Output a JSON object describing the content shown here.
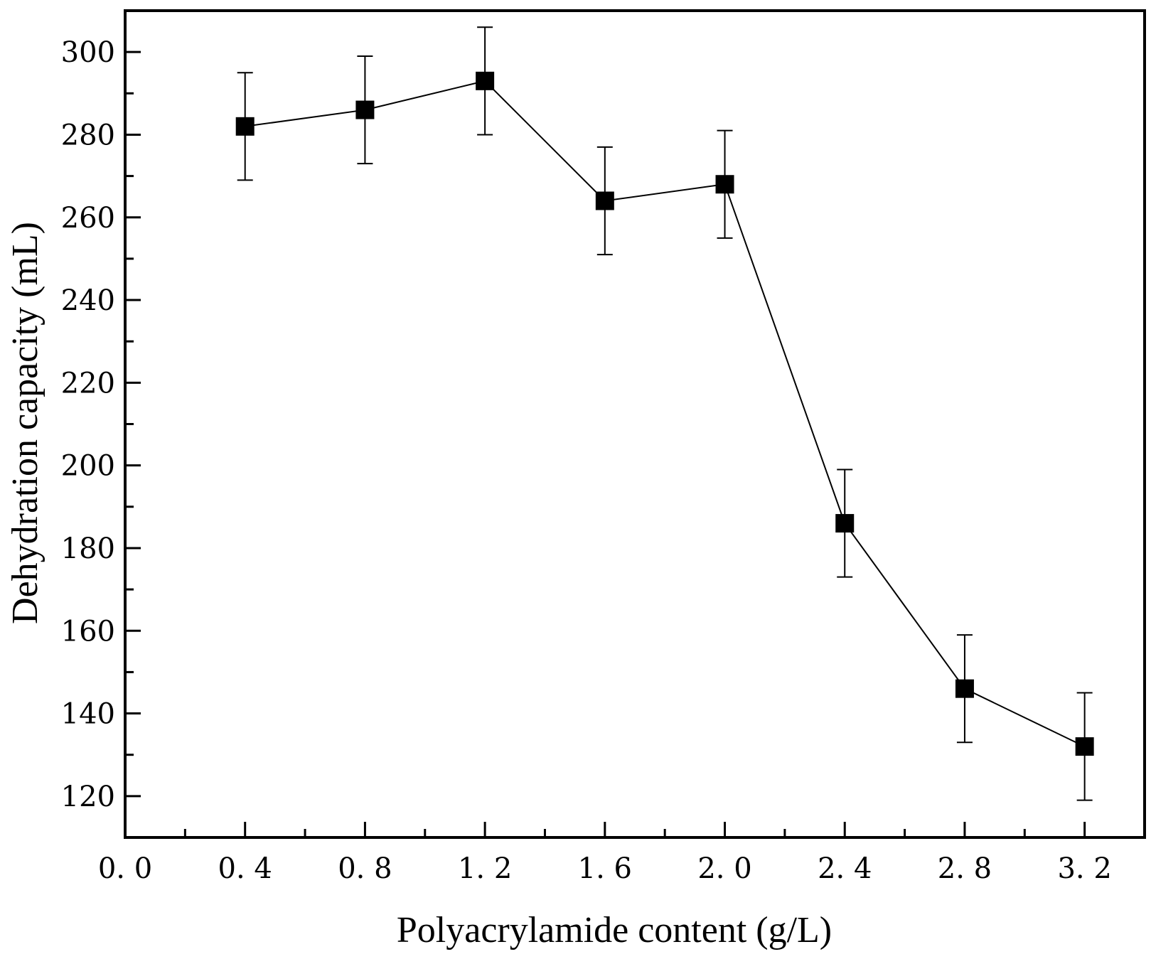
{
  "chart_data": {
    "type": "line",
    "title": "",
    "xlabel": "Polyacrylamide content (g/L)",
    "ylabel": "Dehydration capacity (mL)",
    "xlim": [
      0.0,
      3.4
    ],
    "ylim": [
      110,
      310
    ],
    "x_ticks": [
      0.0,
      0.4,
      0.8,
      1.2,
      1.6,
      2.0,
      2.4,
      2.8,
      3.2
    ],
    "x_tick_labels": [
      "0. 0",
      "0. 4",
      "0. 8",
      "1. 2",
      "1. 6",
      "2. 0",
      "2. 4",
      "2. 8",
      "3. 2"
    ],
    "y_ticks": [
      120,
      140,
      160,
      180,
      200,
      220,
      240,
      260,
      280,
      300
    ],
    "y_tick_labels": [
      "120",
      "140",
      "160",
      "180",
      "200",
      "220",
      "240",
      "260",
      "280",
      "300"
    ],
    "x_minor_ticks": [
      0.2,
      0.6,
      1.0,
      1.4,
      1.8,
      2.2,
      2.6,
      3.0
    ],
    "y_minor_ticks": [
      130,
      150,
      170,
      190,
      210,
      230,
      250,
      270,
      290
    ],
    "grid": false,
    "legend": "none",
    "series": [
      {
        "name": "Dehydration capacity",
        "marker": "square",
        "color": "#000000",
        "x": [
          0.4,
          0.8,
          1.2,
          1.6,
          2.0,
          2.4,
          2.8,
          3.2
        ],
        "y": [
          282,
          286,
          293,
          264,
          268,
          186,
          146,
          132
        ],
        "error": [
          13,
          13,
          13,
          13,
          13,
          13,
          13,
          13
        ]
      }
    ]
  }
}
